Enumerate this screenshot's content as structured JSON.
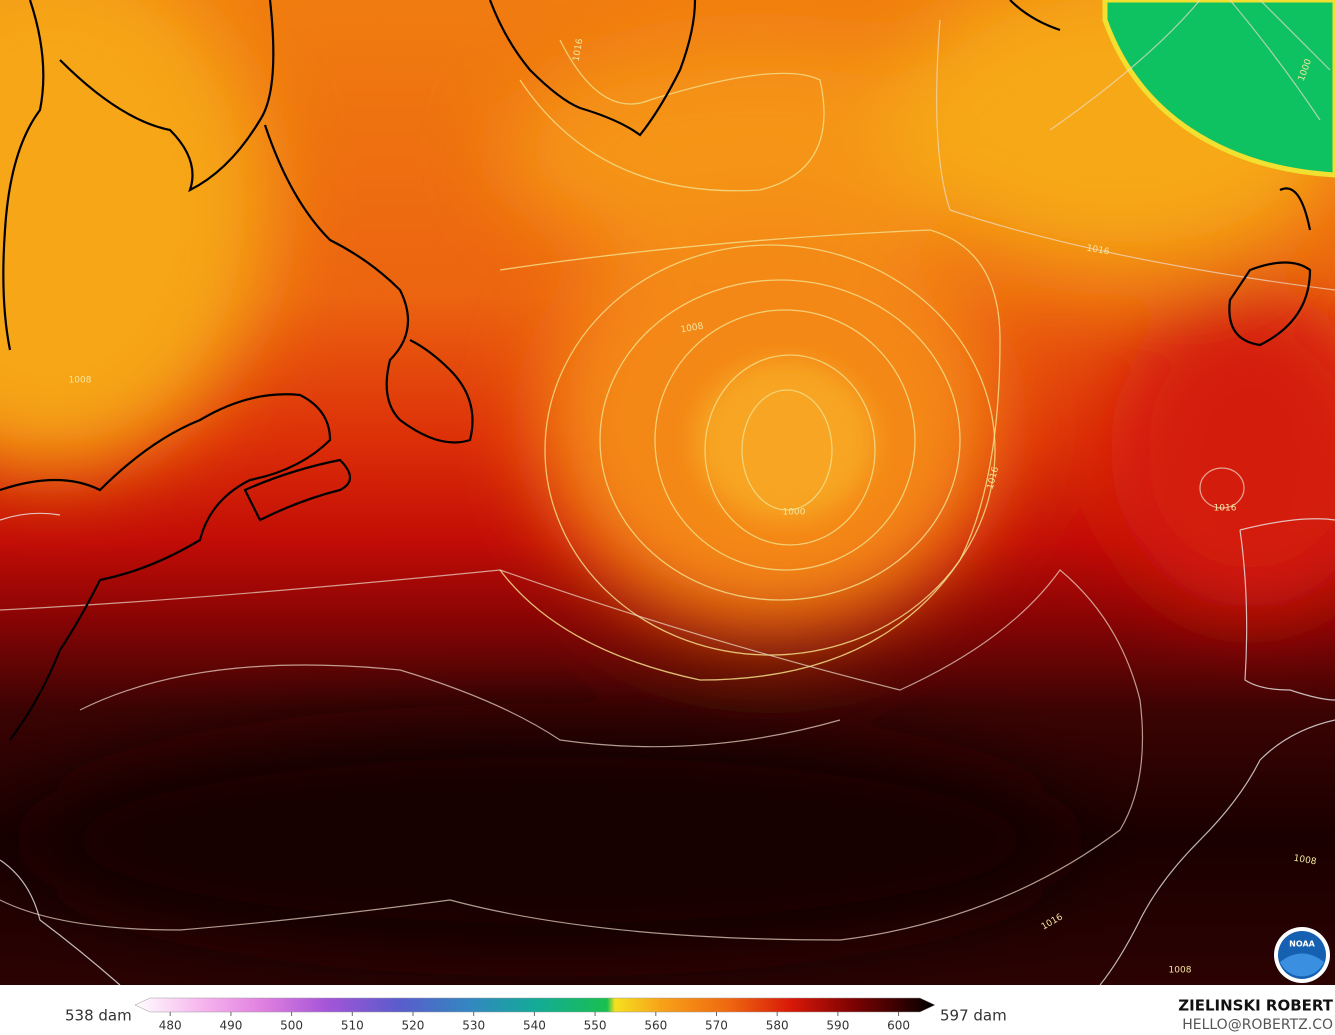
{
  "map": {
    "contour_labels": [
      "1016",
      "1000",
      "1016",
      "1008",
      "1008",
      "1016",
      "1016",
      "1000",
      "1008",
      "1016",
      "1008"
    ],
    "logo": "NOAA"
  },
  "colorbar": {
    "min_label": "538 dam",
    "max_label": "597 dam",
    "lim": [
      474.2,
      606
    ],
    "ticks": [
      480,
      490,
      500,
      510,
      520,
      530,
      540,
      550,
      560,
      570,
      580,
      590,
      600
    ]
  },
  "credit": {
    "name": "ZIELINSKI ROBERT",
    "contact": "HELLO@ROBERTZ.CO"
  }
}
